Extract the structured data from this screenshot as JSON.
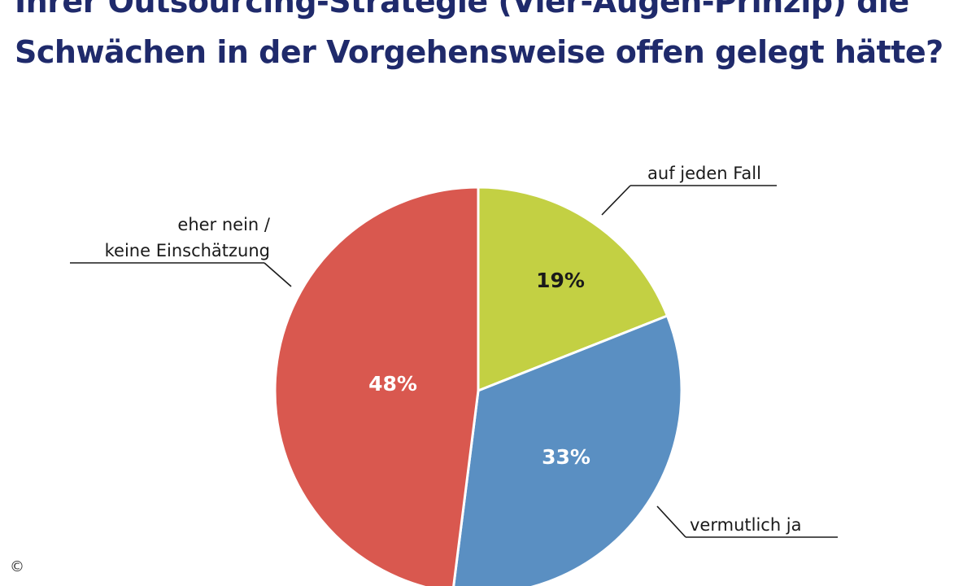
{
  "header": {
    "title_line_1": "Ihrer Outsourcing-Strategie (Vier-Augen-Prinzip) die",
    "title_line_2": "Schwächen in der Vorgehensweise offen gelegt hätte?"
  },
  "chart_data": {
    "type": "pie",
    "title": "Ihrer Outsourcing-Strategie (Vier-Augen-Prinzip) die Schwächen in der Vorgehensweise offen gelegt hätte?",
    "slices": [
      {
        "category": "auf jeden Fall",
        "value": 19,
        "value_label": "19%",
        "color": "#c3d043",
        "label_text_color": "#1a1a1a"
      },
      {
        "category": "vermutlich ja",
        "value": 33,
        "value_label": "33%",
        "color": "#5a8fc2",
        "label_text_color": "#ffffff"
      },
      {
        "category": "eher nein / keine Einschätzung",
        "category_lines": [
          "eher nein /",
          "keine Einschätzung"
        ],
        "value": 48,
        "value_label": "48%",
        "color": "#d9584f",
        "label_text_color": "#ffffff"
      }
    ],
    "start_angle": "12 o'clock",
    "direction": "clockwise"
  },
  "footer": {
    "copyright_symbol": "©"
  }
}
